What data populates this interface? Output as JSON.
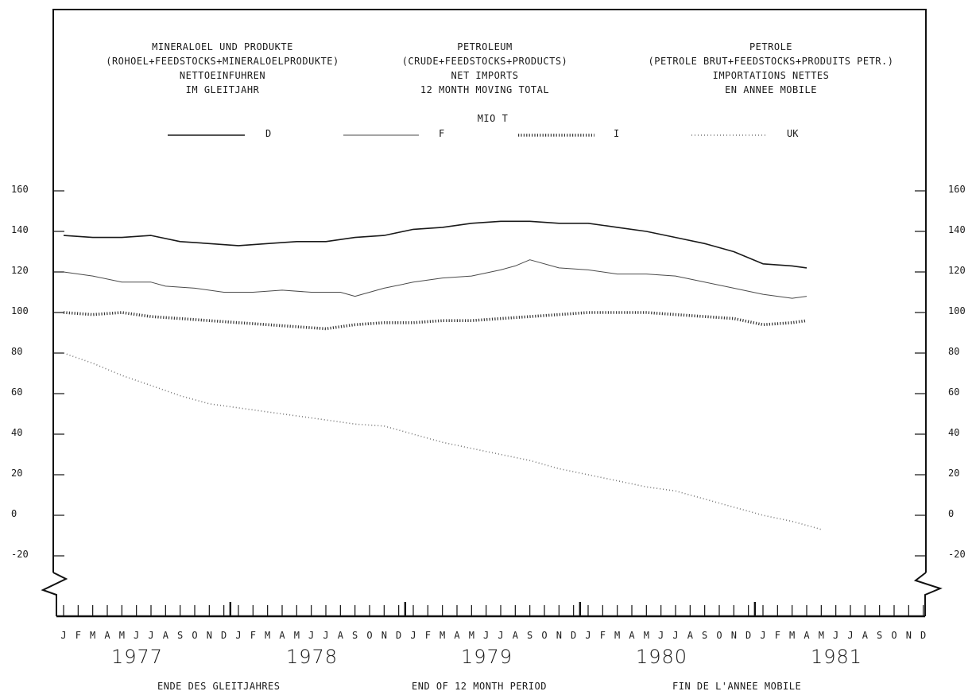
{
  "header": {
    "de": [
      "MINERALOEL UND PRODUKTE",
      "(ROHOEL+FEEDSTOCKS+MINERALOELPRODUKTE)",
      "NETTOEINFUHREN",
      "IM GLEITJAHR"
    ],
    "en": [
      "PETROLEUM",
      "(CRUDE+FEEDSTOCKS+PRODUCTS)",
      "NET IMPORTS",
      "12 MONTH MOVING TOTAL"
    ],
    "fr": [
      "PETROLE",
      "(PETROLE BRUT+FEEDSTOCKS+PRODUITS PETR.)",
      "IMPORTATIONS NETTES",
      "EN ANNEE MOBILE"
    ]
  },
  "unit": "MIO T",
  "footer": {
    "de": "ENDE DES GLEITJAHRES",
    "en": "END OF 12 MONTH PERIOD",
    "fr": "FIN DE L'ANNEE MOBILE"
  },
  "months": [
    "J",
    "F",
    "M",
    "A",
    "M",
    "J",
    "J",
    "A",
    "S",
    "O",
    "N",
    "D"
  ],
  "years": [
    "1977",
    "1978",
    "1979",
    "1980",
    "1981"
  ],
  "chart_data": {
    "type": "line",
    "x_unit": "month (Jan 1977 .. Dec 1981)",
    "ylim": [
      -20,
      160
    ],
    "yticks": [
      -20,
      0,
      20,
      40,
      60,
      80,
      100,
      120,
      140,
      160
    ],
    "ytick_labels": [
      "-20",
      "0",
      "20",
      "40",
      "60",
      "80",
      "100",
      "120",
      "140",
      "160"
    ],
    "legend_position": "top",
    "series": [
      {
        "name": "D",
        "style": "solid-thick",
        "x": [
          "1977-01",
          "1977-03",
          "1977-05",
          "1977-07",
          "1977-09",
          "1977-11",
          "1978-01",
          "1978-03",
          "1978-05",
          "1978-07",
          "1978-09",
          "1978-11",
          "1979-01",
          "1979-03",
          "1979-05",
          "1979-07",
          "1979-09",
          "1979-11",
          "1980-01",
          "1980-03",
          "1980-05",
          "1980-07",
          "1980-09",
          "1980-11",
          "1981-01",
          "1981-03",
          "1981-04"
        ],
        "values": [
          138,
          137,
          137,
          138,
          135,
          134,
          133,
          134,
          135,
          135,
          137,
          138,
          141,
          142,
          144,
          145,
          145,
          144,
          144,
          142,
          140,
          137,
          134,
          130,
          124,
          123,
          122
        ]
      },
      {
        "name": "F",
        "style": "solid-thin",
        "x": [
          "1977-01",
          "1977-03",
          "1977-05",
          "1977-07",
          "1977-08",
          "1977-10",
          "1977-12",
          "1978-02",
          "1978-04",
          "1978-06",
          "1978-08",
          "1978-09",
          "1978-11",
          "1979-01",
          "1979-03",
          "1979-05",
          "1979-07",
          "1979-08",
          "1979-09",
          "1979-11",
          "1980-01",
          "1980-03",
          "1980-05",
          "1980-07",
          "1980-09",
          "1980-11",
          "1981-01",
          "1981-03",
          "1981-04"
        ],
        "values": [
          120,
          118,
          115,
          115,
          113,
          112,
          110,
          110,
          111,
          110,
          110,
          108,
          112,
          115,
          117,
          118,
          121,
          123,
          126,
          122,
          121,
          119,
          119,
          118,
          115,
          112,
          109,
          107,
          108
        ]
      },
      {
        "name": "I",
        "style": "dotted-thick",
        "x": [
          "1977-01",
          "1977-03",
          "1977-05",
          "1977-07",
          "1977-09",
          "1977-11",
          "1978-01",
          "1978-03",
          "1978-05",
          "1978-07",
          "1978-09",
          "1978-11",
          "1979-01",
          "1979-03",
          "1979-05",
          "1979-07",
          "1979-09",
          "1979-11",
          "1980-01",
          "1980-03",
          "1980-05",
          "1980-07",
          "1980-09",
          "1980-11",
          "1981-01",
          "1981-03",
          "1981-04"
        ],
        "values": [
          100,
          99,
          100,
          98,
          97,
          96,
          95,
          94,
          93,
          92,
          94,
          95,
          95,
          96,
          96,
          97,
          98,
          99,
          100,
          100,
          100,
          99,
          98,
          97,
          94,
          95,
          96
        ]
      },
      {
        "name": "UK",
        "style": "dotted-thin",
        "x": [
          "1977-01",
          "1977-03",
          "1977-05",
          "1977-07",
          "1977-09",
          "1977-11",
          "1978-01",
          "1978-03",
          "1978-05",
          "1978-07",
          "1978-09",
          "1978-11",
          "1979-01",
          "1979-03",
          "1979-05",
          "1979-07",
          "1979-09",
          "1979-11",
          "1980-01",
          "1980-03",
          "1980-05",
          "1980-07",
          "1980-09",
          "1980-11",
          "1981-01",
          "1981-03",
          "1981-05"
        ],
        "values": [
          80,
          75,
          69,
          64,
          59,
          55,
          53,
          51,
          49,
          47,
          45,
          44,
          40,
          36,
          33,
          30,
          27,
          23,
          20,
          17,
          14,
          12,
          8,
          4,
          0,
          -3,
          -7
        ]
      }
    ]
  }
}
